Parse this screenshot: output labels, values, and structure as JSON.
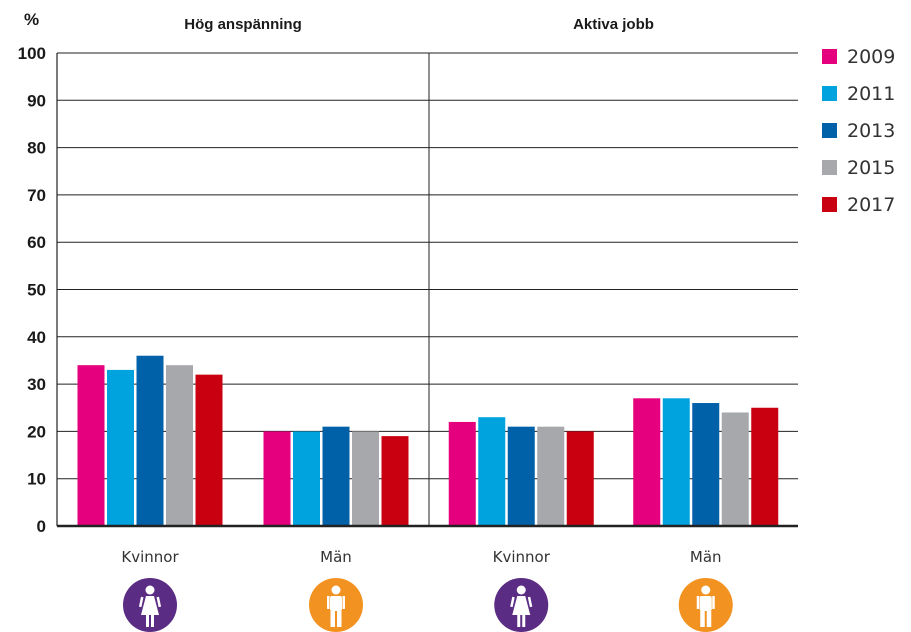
{
  "chart_data": {
    "type": "bar",
    "y_unit_label": "%",
    "ylim": [
      0,
      100
    ],
    "yticks": [
      0,
      10,
      20,
      30,
      40,
      50,
      60,
      70,
      80,
      90,
      100
    ],
    "grid": true,
    "legend_position": "right",
    "series": [
      {
        "name": "2009",
        "color": "#e5007e"
      },
      {
        "name": "2011",
        "color": "#00a3de"
      },
      {
        "name": "2013",
        "color": "#0061a8"
      },
      {
        "name": "2015",
        "color": "#a6a8ab"
      },
      {
        "name": "2017",
        "color": "#c8000f"
      }
    ],
    "panels": [
      {
        "title": "Hög anspänning",
        "categories": [
          {
            "label": "Kvinnor",
            "icon": "female-icon",
            "icon_color": "#5b2c83",
            "values": [
              34,
              33,
              36,
              34,
              32
            ]
          },
          {
            "label": "Män",
            "icon": "male-icon",
            "icon_color": "#f29321",
            "values": [
              20,
              20,
              21,
              20,
              19
            ]
          }
        ]
      },
      {
        "title": "Aktiva jobb",
        "categories": [
          {
            "label": "Kvinnor",
            "icon": "female-icon",
            "icon_color": "#5b2c83",
            "values": [
              22,
              23,
              21,
              21,
              20
            ]
          },
          {
            "label": "Män",
            "icon": "male-icon",
            "icon_color": "#f29321",
            "values": [
              27,
              27,
              26,
              24,
              25
            ]
          }
        ]
      }
    ]
  }
}
